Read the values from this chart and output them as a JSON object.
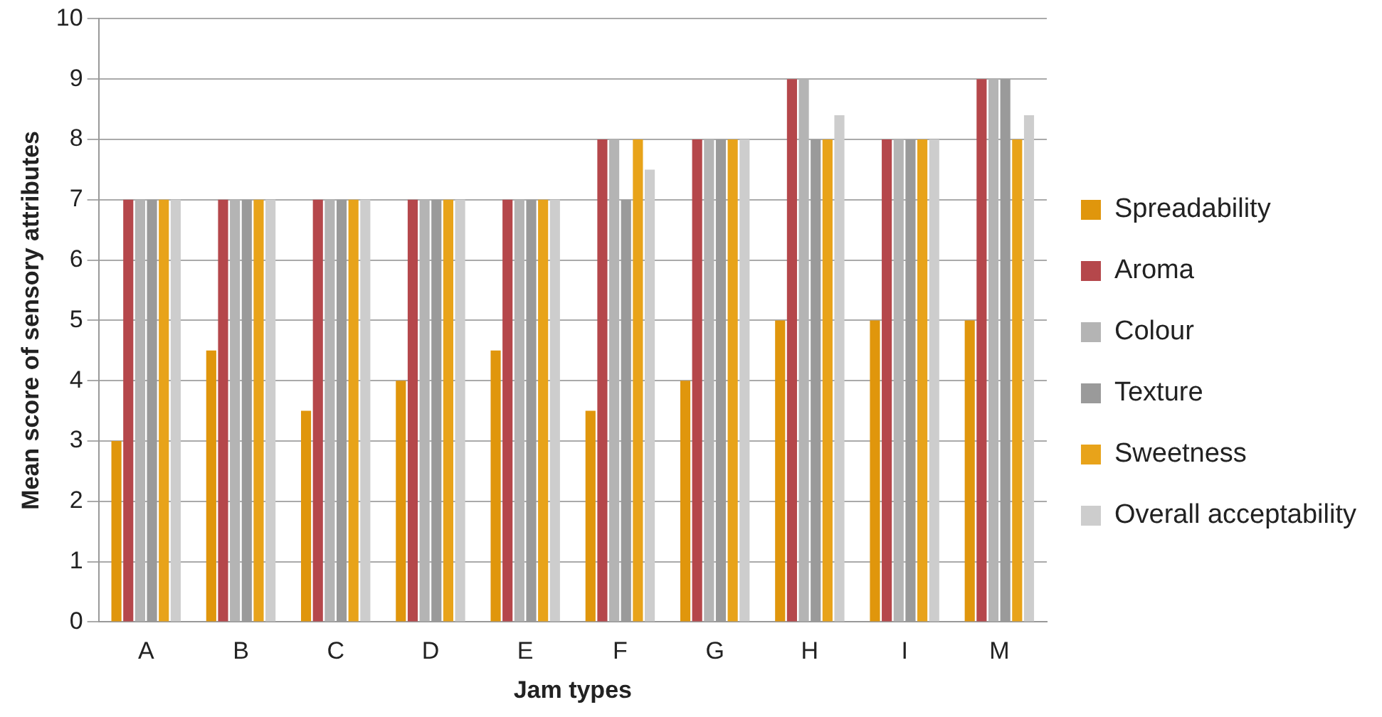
{
  "chart_data": {
    "type": "bar",
    "xlabel": "Jam types",
    "ylabel": "Mean score of sensory attributes",
    "categories": [
      "A",
      "B",
      "C",
      "D",
      "E",
      "F",
      "G",
      "H",
      "I",
      "M"
    ],
    "series": [
      {
        "name": "Spreadability",
        "color": "#e0960c",
        "values": [
          3,
          4.5,
          3.5,
          4,
          4.5,
          3.5,
          4,
          5,
          5,
          5
        ]
      },
      {
        "name": "Aroma",
        "color": "#b5474b",
        "values": [
          7,
          7,
          7,
          7,
          7,
          8,
          8,
          9,
          8,
          9
        ]
      },
      {
        "name": "Colour",
        "color": "#b4b4b4",
        "values": [
          7,
          7,
          7,
          7,
          7,
          8,
          8,
          9,
          8,
          9
        ]
      },
      {
        "name": "Texture",
        "color": "#9a9a9a",
        "values": [
          7,
          7,
          7,
          7,
          7,
          7,
          8,
          8,
          8,
          9
        ]
      },
      {
        "name": "Sweetness",
        "color": "#e8a31a",
        "values": [
          7,
          7,
          7,
          7,
          7,
          8,
          8,
          8,
          8,
          8
        ]
      },
      {
        "name": "Overall acceptability",
        "color": "#cdcdcd",
        "values": [
          7,
          7,
          7,
          7,
          7,
          7.5,
          8,
          8.4,
          8,
          8.4
        ]
      }
    ],
    "ylim": [
      0,
      10
    ],
    "yticks": [
      0,
      1,
      2,
      3,
      4,
      5,
      6,
      7,
      8,
      9,
      10
    ],
    "grid": "y",
    "legend": "right"
  }
}
